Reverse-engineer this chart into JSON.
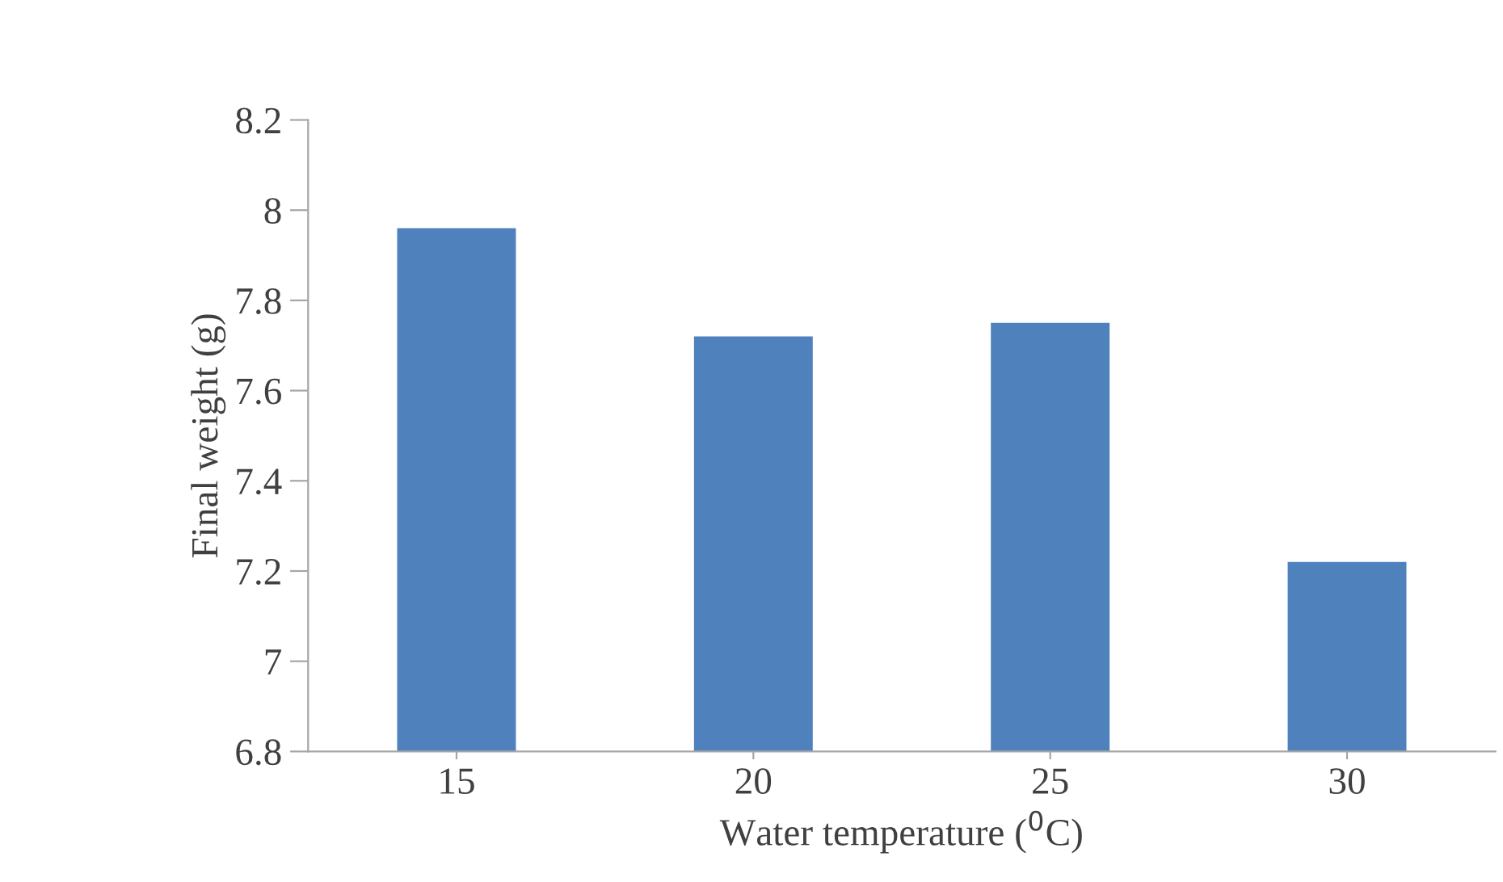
{
  "chart_data": {
    "type": "bar",
    "xlabel": "Water temperature ($^{0}$C)",
    "ylabel": "Final weight (g)",
    "categories": [
      "15",
      "20",
      "25",
      "30"
    ],
    "values": [
      7.96,
      7.72,
      7.75,
      7.22
    ],
    "color": "#4f81bd",
    "ylim": [
      6.8,
      8.2
    ],
    "yticks": [
      6.8,
      {
        "value": 7,
        "label": "7"
      },
      7.2,
      7.4,
      7.6,
      7.8,
      {
        "value": 8,
        "label": "8"
      },
      8.2
    ],
    "grid": false,
    "legend": false
  }
}
